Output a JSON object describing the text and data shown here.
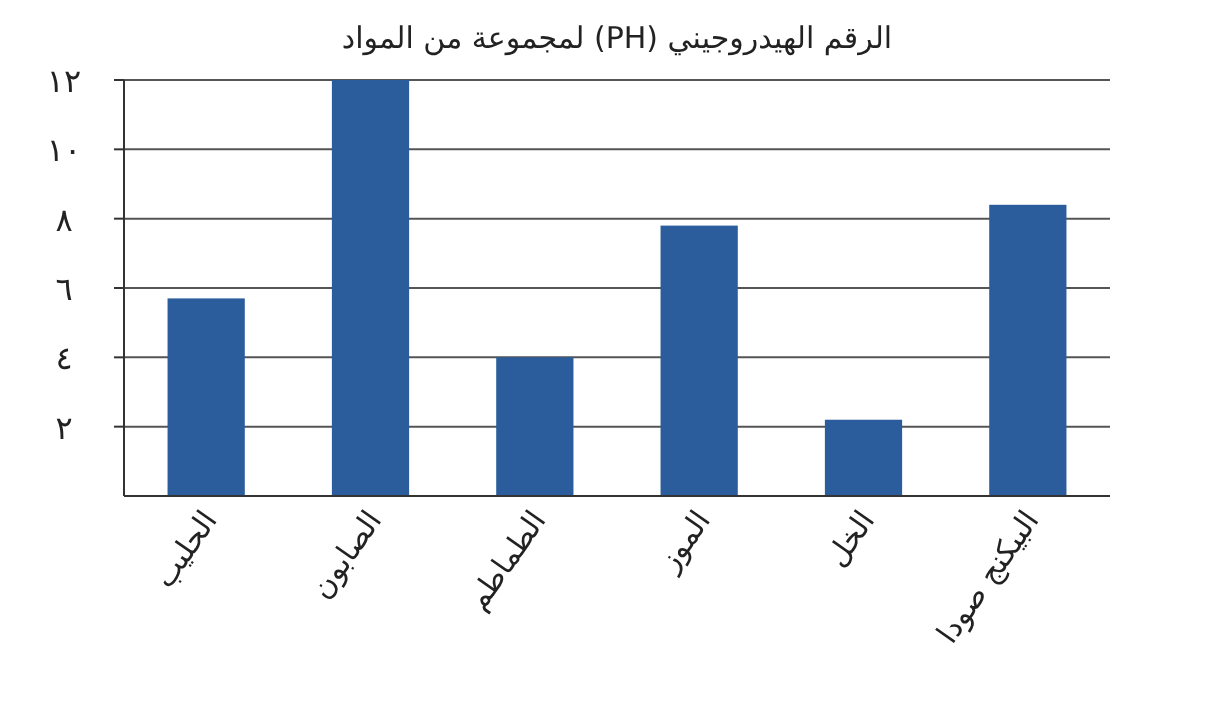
{
  "chart_data": {
    "type": "bar",
    "title": "الرقم الهيدروجيني (PH) لمجموعة من المواد",
    "categories": [
      "الحليب",
      "الصابون",
      "الطماطم",
      "الموز",
      "الخل",
      "البيكنج صودا"
    ],
    "values": [
      5.7,
      12,
      4,
      7.8,
      2.2,
      8.4
    ],
    "color": "#2b5c9b",
    "ylim": [
      0,
      12
    ],
    "yticks": [
      {
        "value": 2,
        "label": "٢"
      },
      {
        "value": 4,
        "label": "٤"
      },
      {
        "value": 6,
        "label": "٦"
      },
      {
        "value": 8,
        "label": "٨"
      },
      {
        "value": 10,
        "label": "١٠"
      },
      {
        "value": 12,
        "label": "١٢"
      }
    ],
    "grid": "y"
  }
}
